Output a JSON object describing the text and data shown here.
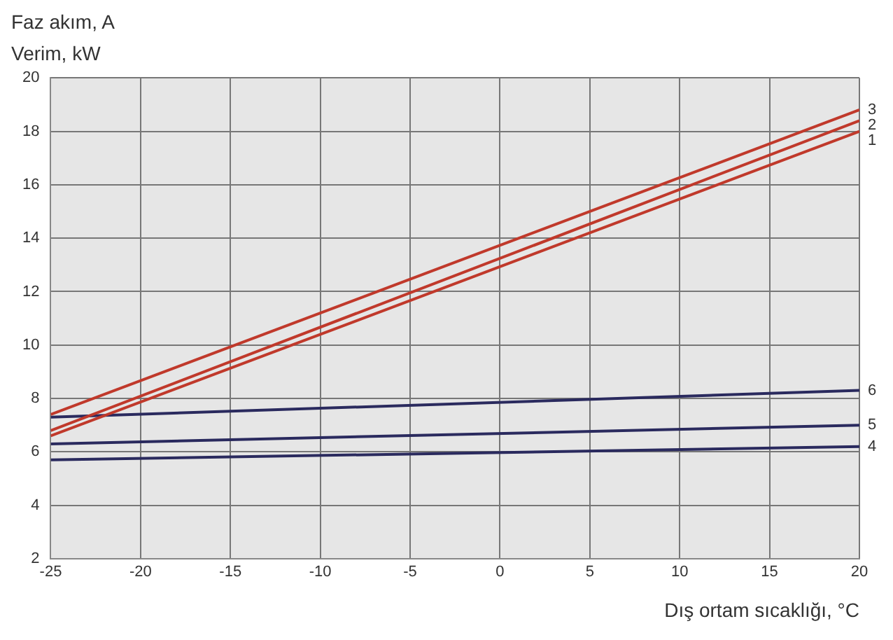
{
  "chart_data": {
    "type": "line",
    "title": "Faz akım, A",
    "subtitle": "Verim, kW",
    "xlabel": "Dış ortam sıcaklığı, °C",
    "x": [
      -25,
      20
    ],
    "series": [
      {
        "name": "1",
        "color": "#c0392b",
        "values": [
          6.6,
          18.0
        ]
      },
      {
        "name": "2",
        "color": "#c0392b",
        "values": [
          6.8,
          18.4
        ]
      },
      {
        "name": "3",
        "color": "#c0392b",
        "values": [
          7.4,
          18.8
        ]
      },
      {
        "name": "4",
        "color": "#2a2a5e",
        "values": [
          5.7,
          6.2
        ]
      },
      {
        "name": "5",
        "color": "#2a2a5e",
        "values": [
          6.3,
          7.0
        ]
      },
      {
        "name": "6",
        "color": "#2a2a5e",
        "values": [
          7.3,
          8.3
        ]
      }
    ],
    "xlim": [
      -25,
      20
    ],
    "xticks": [
      -25,
      -20,
      -15,
      -10,
      -5,
      0,
      5,
      10,
      15,
      20
    ],
    "ylim": [
      2,
      20
    ],
    "yticks": [
      2,
      4,
      6,
      8,
      10,
      12,
      14,
      16,
      18,
      20
    ],
    "grid": true,
    "legend": false,
    "marker": "none",
    "line_style": "solid"
  }
}
